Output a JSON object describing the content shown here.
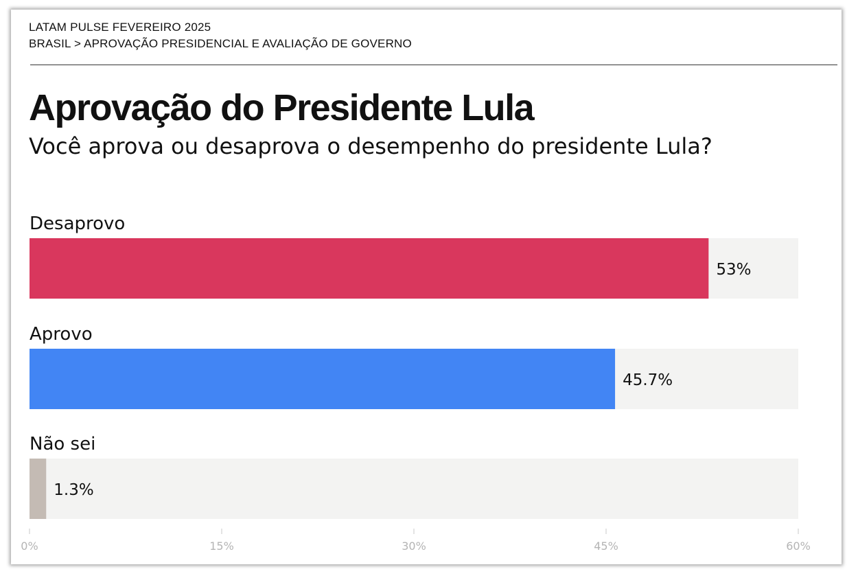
{
  "header": {
    "kicker": "LATAM PULSE FEVEREIRO 2025",
    "breadcrumb": "BRASIL > APROVAÇÃO PRESIDENCIAL E AVALIAÇÃO DE GOVERNO"
  },
  "chart_data": {
    "type": "bar",
    "orientation": "horizontal",
    "title": "Aprovação do Presidente Lula",
    "subtitle": "Você aprova ou desaprova o desempenho do presidente Lula?",
    "categories": [
      "Desaprovo",
      "Aprovo",
      "Não sei"
    ],
    "values": [
      53,
      45.7,
      1.3
    ],
    "value_labels": [
      "53%",
      "45.7%",
      "1.3%"
    ],
    "colors": [
      "#d9375d",
      "#4285f4",
      "#c4bbb4"
    ],
    "track_color": "#f3f3f2",
    "xlim": [
      0,
      60
    ],
    "xticks": [
      0,
      15,
      30,
      45,
      60
    ],
    "xtick_labels": [
      "0%",
      "15%",
      "30%",
      "45%",
      "60%"
    ],
    "grid": false,
    "legend": "none"
  }
}
